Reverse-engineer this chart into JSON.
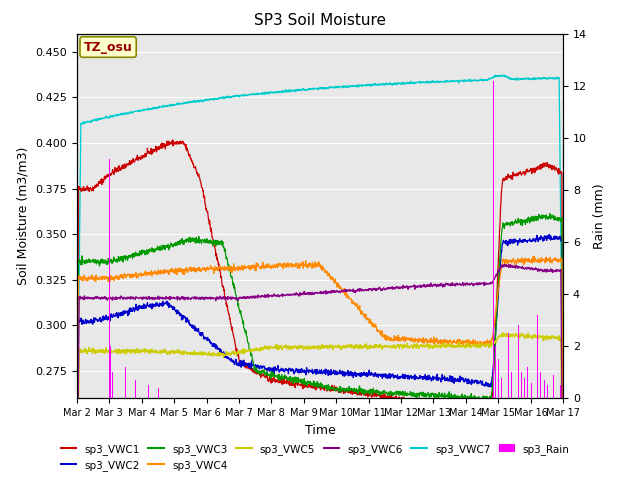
{
  "title": "SP3 Soil Moisture",
  "ylabel_left": "Soil Moisture (m3/m3)",
  "ylabel_right": "Rain (mm)",
  "xlabel": "Time",
  "ylim_left": [
    0.26,
    0.46
  ],
  "ylim_right": [
    0,
    14
  ],
  "colors": {
    "sp3_VWC1": "#cc0000",
    "sp3_VWC2": "#0000cc",
    "sp3_VWC3": "#009900",
    "sp3_VWC4": "#ff8800",
    "sp3_VWC5": "#cccc00",
    "sp3_VWC6": "#880088",
    "sp3_VWC7": "#00cccc",
    "sp3_Rain": "#ff00ff"
  },
  "bg_color": "#e8e8e8",
  "annotation_text": "TZ_osu",
  "annotation_bg": "#ffffcc",
  "annotation_border": "#888800"
}
